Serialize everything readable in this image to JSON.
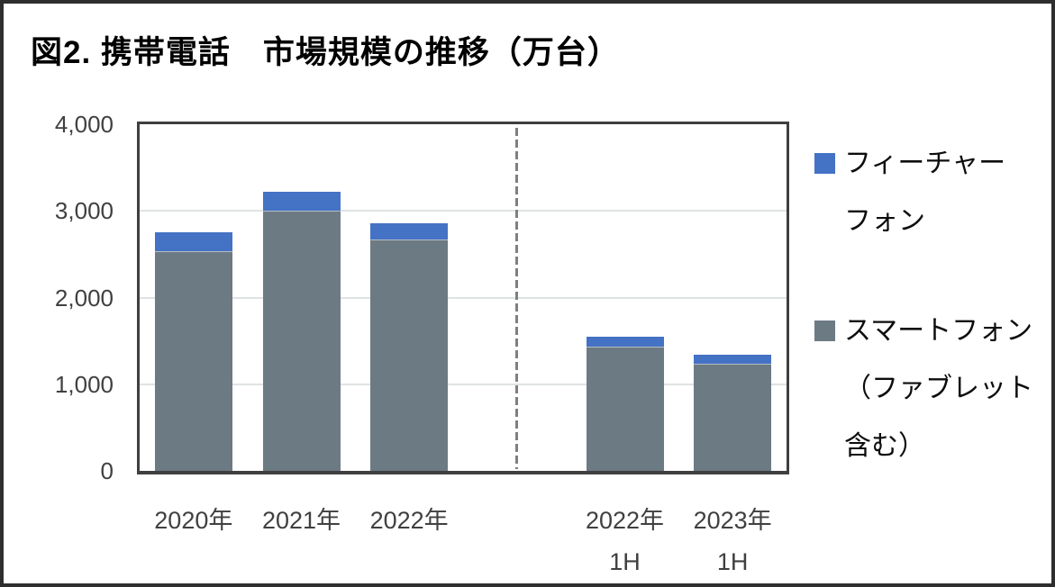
{
  "title": "図2. 携帯電話　市場規模の推移（万台）",
  "colors": {
    "feature_phone": "#4472c4",
    "smartphone": "#6c7a84",
    "grid": "#dfe3e3",
    "plot_border": "#3f3f3f",
    "divider": "#7f7f7f",
    "axis_text": "#404040",
    "legend_text": "#0d0d0d",
    "frame": "#2e2e2e"
  },
  "chart_data": {
    "type": "bar",
    "stacked": true,
    "title": "図2. 携帯電話　市場規模の推移（万台）",
    "unit": "万台",
    "categories": [
      "2020年",
      "2021年",
      "2022年",
      "2022年 1H",
      "2023年 1H"
    ],
    "category_lines": [
      [
        "2020年"
      ],
      [
        "2021年"
      ],
      [
        "2022年"
      ],
      [
        "2022年",
        "1H"
      ],
      [
        "2023年",
        "1H"
      ]
    ],
    "series": [
      {
        "name": "スマートフォン（ファブレット含む）",
        "color_key": "smartphone",
        "values": [
          2540,
          3000,
          2670,
          1430,
          1240
        ]
      },
      {
        "name": "フィーチャーフォン",
        "color_key": "feature_phone",
        "values": [
          210,
          220,
          190,
          120,
          100
        ]
      }
    ],
    "totals": [
      2750,
      3220,
      2860,
      1550,
      1340
    ],
    "ylim": [
      0,
      4000
    ],
    "ytick_values": [
      4000,
      3000,
      2000,
      1000,
      0
    ],
    "ytick_labels": [
      "4,000",
      "3,000",
      "2,000",
      "1,000",
      "0"
    ],
    "grid": true,
    "legend_position": "right",
    "divider_between": "annual and half-year categories"
  },
  "legend": {
    "items": [
      {
        "lines": [
          "フィーチャー",
          "フォン"
        ],
        "color_key": "feature_phone",
        "series": "フィーチャーフォン"
      },
      {
        "lines": [
          "スマートフォン",
          "（ファブレット",
          "含む）"
        ],
        "color_key": "smartphone",
        "series": "スマートフォン（ファブレット含む）"
      }
    ]
  }
}
